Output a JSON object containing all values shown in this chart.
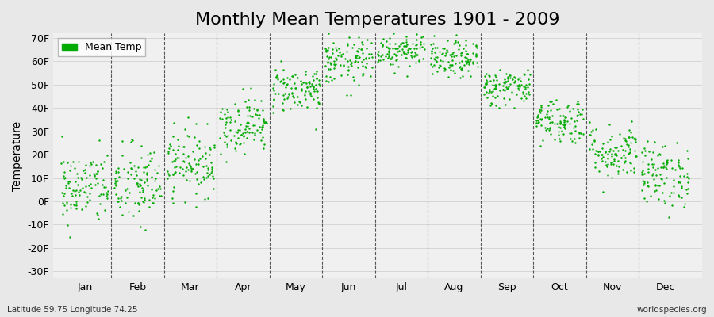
{
  "title": "Monthly Mean Temperatures 1901 - 2009",
  "ylabel": "Temperature",
  "subtitle_left": "Latitude 59.75 Longitude 74.25",
  "subtitle_right": "worldspecies.org",
  "yticks": [
    -30,
    -20,
    -10,
    0,
    10,
    20,
    30,
    40,
    50,
    60,
    70
  ],
  "ytick_labels": [
    "-30F",
    "-20F",
    "-10F",
    "0F",
    "10F",
    "20F",
    "30F",
    "40F",
    "50F",
    "60F",
    "70F"
  ],
  "ylim": [
    -33,
    72
  ],
  "months": [
    "Jan",
    "Feb",
    "Mar",
    "Apr",
    "May",
    "Jun",
    "Jul",
    "Aug",
    "Sep",
    "Oct",
    "Nov",
    "Dec"
  ],
  "dot_color": "#00aa00",
  "bg_color": "#e8e8e8",
  "panel_color": "#f0f0f0",
  "legend_label": "Mean Temp",
  "title_fontsize": 16,
  "axis_fontsize": 9,
  "label_fontsize": 10,
  "n_years": 109,
  "mean_temps_C": [
    -14.5,
    -14.0,
    -8.5,
    0.5,
    9.0,
    15.5,
    18.5,
    16.0,
    9.5,
    1.5,
    -6.0,
    -11.5
  ]
}
